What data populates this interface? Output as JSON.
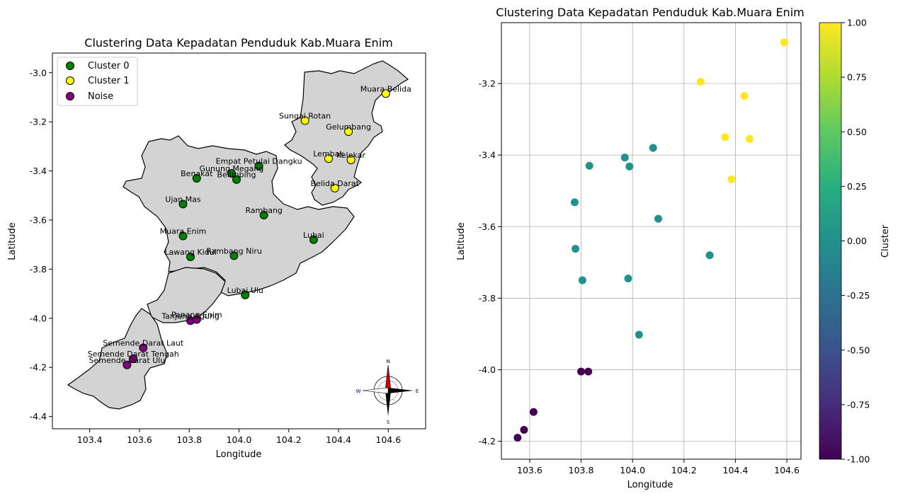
{
  "chart_data": [
    {
      "type": "scatter",
      "title": "Clustering Data Kepadatan Penduduk Kab.Muara Enim",
      "xlabel": "Longitude",
      "ylabel": "Latitude",
      "xlim": [
        103.25,
        104.75
      ],
      "ylim": [
        -4.45,
        -2.92
      ],
      "xticks": [
        "103.4",
        "103.6",
        "103.8",
        "104.0",
        "104.2",
        "104.4",
        "104.6"
      ],
      "yticks": [
        "-3.0",
        "-3.2",
        "-3.4",
        "-3.6",
        "-3.8",
        "-4.0",
        "-4.2",
        "-4.4"
      ],
      "grid": false,
      "legend_position": "upper-left",
      "legend": [
        {
          "label": "Cluster 0",
          "color": "#008000"
        },
        {
          "label": "Cluster 1",
          "color": "#ffff00"
        },
        {
          "label": "Noise",
          "color": "#800080"
        }
      ],
      "compass": {
        "n": "N",
        "s": "S",
        "e": "E",
        "w": "W"
      },
      "points": [
        {
          "name": "Muara Belida",
          "x": 104.59,
          "y": -3.085,
          "cluster": 1
        },
        {
          "name": "Sungai Rotan",
          "x": 104.265,
          "y": -3.195,
          "cluster": 1
        },
        {
          "name": "Gelumbang",
          "x": 104.44,
          "y": -3.24,
          "cluster": 1
        },
        {
          "name": "Lembak",
          "x": 104.36,
          "y": -3.35,
          "cluster": 1
        },
        {
          "name": "Kelekar",
          "x": 104.45,
          "y": -3.355,
          "cluster": 1
        },
        {
          "name": "Belida Darat",
          "x": 104.385,
          "y": -3.47,
          "cluster": 1
        },
        {
          "name": "Empat Petulai Dangku",
          "x": 104.08,
          "y": -3.38,
          "cluster": 0
        },
        {
          "name": "Gunung Megang",
          "x": 103.97,
          "y": -3.41,
          "cluster": 0
        },
        {
          "name": "Belimbing",
          "x": 103.99,
          "y": -3.435,
          "cluster": 0
        },
        {
          "name": "Benakat",
          "x": 103.83,
          "y": -3.43,
          "cluster": 0
        },
        {
          "name": "Ujan Mas",
          "x": 103.775,
          "y": -3.535,
          "cluster": 0
        },
        {
          "name": "Rambang",
          "x": 104.1,
          "y": -3.58,
          "cluster": 0
        },
        {
          "name": "Muara Enim",
          "x": 103.775,
          "y": -3.665,
          "cluster": 0
        },
        {
          "name": "Lubai",
          "x": 104.3,
          "y": -3.68,
          "cluster": 0
        },
        {
          "name": "Lawang Kidul",
          "x": 103.805,
          "y": -3.75,
          "cluster": 0
        },
        {
          "name": "Rambang Niru",
          "x": 103.98,
          "y": -3.745,
          "cluster": 0
        },
        {
          "name": "Lubai Ulu",
          "x": 104.025,
          "y": -3.905,
          "cluster": 0
        },
        {
          "name": "Tanjung Agung",
          "x": 103.805,
          "y": -4.01,
          "cluster": -1
        },
        {
          "name": "Panang Enim",
          "x": 103.83,
          "y": -4.005,
          "cluster": -1
        },
        {
          "name": "Semende Darat Laut",
          "x": 103.615,
          "y": -4.12,
          "cluster": -1
        },
        {
          "name": "Semende Darat Tengah",
          "x": 103.575,
          "y": -4.165,
          "cluster": -1
        },
        {
          "name": "Semende Darat Ulu",
          "x": 103.55,
          "y": -4.19,
          "cluster": -1
        }
      ]
    },
    {
      "type": "scatter",
      "title": "Clustering Data Kepadatan Penduduk Kab.Muara Enim",
      "xlabel": "Longitude",
      "ylabel": "Latitude",
      "xlim": [
        103.49,
        104.655
      ],
      "ylim": [
        -4.25,
        -3.03
      ],
      "xticks": [
        "103.6",
        "103.8",
        "104.0",
        "104.2",
        "104.4",
        "104.6"
      ],
      "yticks": [
        "-3.2",
        "-3.4",
        "-3.6",
        "-3.8",
        "-4.0",
        "-4.2"
      ],
      "grid": true,
      "colorbar": {
        "label": "Cluster",
        "min": -1.0,
        "max": 1.0,
        "ticks": [
          "1.00",
          "0.75",
          "0.50",
          "0.25",
          "0.00",
          "-0.25",
          "-0.50",
          "-0.75",
          "-1.00"
        ],
        "colormap": "viridis"
      },
      "points": [
        {
          "x": 104.59,
          "y": -3.085,
          "cluster": 1
        },
        {
          "x": 104.265,
          "y": -3.195,
          "cluster": 1
        },
        {
          "x": 104.435,
          "y": -3.235,
          "cluster": 1
        },
        {
          "x": 104.36,
          "y": -3.35,
          "cluster": 1
        },
        {
          "x": 104.455,
          "y": -3.355,
          "cluster": 1
        },
        {
          "x": 104.385,
          "y": -3.468,
          "cluster": 1
        },
        {
          "x": 104.08,
          "y": -3.38,
          "cluster": 0
        },
        {
          "x": 103.97,
          "y": -3.407,
          "cluster": 0
        },
        {
          "x": 103.988,
          "y": -3.432,
          "cluster": 0
        },
        {
          "x": 103.832,
          "y": -3.43,
          "cluster": 0
        },
        {
          "x": 103.775,
          "y": -3.532,
          "cluster": 0
        },
        {
          "x": 104.1,
          "y": -3.578,
          "cluster": 0
        },
        {
          "x": 103.778,
          "y": -3.662,
          "cluster": 0
        },
        {
          "x": 104.3,
          "y": -3.68,
          "cluster": 0
        },
        {
          "x": 103.805,
          "y": -3.75,
          "cluster": 0
        },
        {
          "x": 103.983,
          "y": -3.745,
          "cluster": 0
        },
        {
          "x": 104.025,
          "y": -3.902,
          "cluster": 0
        },
        {
          "x": 103.8,
          "y": -4.005,
          "cluster": -1
        },
        {
          "x": 103.828,
          "y": -4.005,
          "cluster": -1
        },
        {
          "x": 103.615,
          "y": -4.118,
          "cluster": -1
        },
        {
          "x": 103.578,
          "y": -4.168,
          "cluster": -1
        },
        {
          "x": 103.553,
          "y": -4.19,
          "cluster": -1
        }
      ]
    }
  ]
}
